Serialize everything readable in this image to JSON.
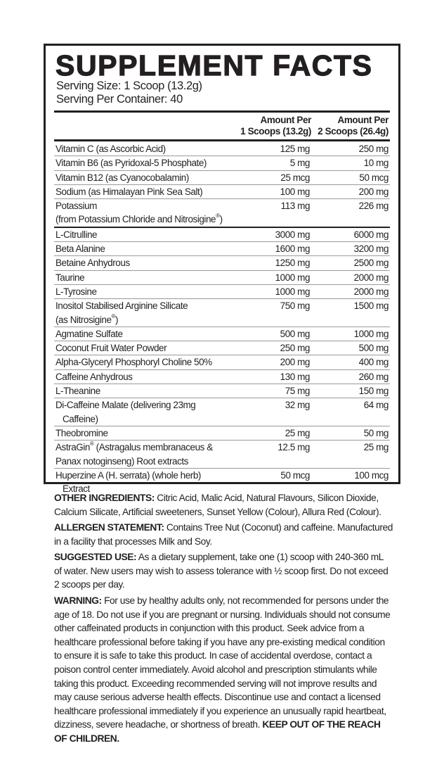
{
  "title": "SUPPLEMENT FACTS",
  "serving_size": "Serving Size: 1 Scoop (13.2g)",
  "servings_per_container": "Serving Per Container: 40",
  "columns": {
    "col1_line1": "Amount Per",
    "col1_line2": "1 Scoops (13.2g)",
    "col2_line1": "Amount Per",
    "col2_line2": "2 Scoops (26.4g)"
  },
  "rows": [
    {
      "name": "Vitamin C (as Ascorbic Acid)",
      "v1": "125 mg",
      "v2": "250 mg"
    },
    {
      "name": "Vitamin B6 (as Pyridoxal-5 Phosphate)",
      "v1": "5 mg",
      "v2": "10 mg"
    },
    {
      "name": "Vitamin B12 (as Cyanocobalamin)",
      "v1": "25 mcg",
      "v2": "50 mcg"
    },
    {
      "name": "Sodium (as Himalayan Pink Sea Salt)",
      "v1": "100 mg",
      "v2": "200 mg"
    },
    {
      "name": "Potassium",
      "name2": "(from Potassium Chloride and Nitrosigine®)",
      "v1": "113 mg",
      "v2": "226 mg",
      "section_end": true
    },
    {
      "name": "L-Citrulline",
      "v1": "3000 mg",
      "v2": "6000 mg"
    },
    {
      "name": "Beta Alanine",
      "v1": "1600 mg",
      "v2": "3200 mg"
    },
    {
      "name": "Betaine Anhydrous",
      "v1": "1250 mg",
      "v2": "2500 mg"
    },
    {
      "name": "Taurine",
      "v1": "1000 mg",
      "v2": "2000 mg"
    },
    {
      "name": "L-Tyrosine",
      "v1": "1000 mg",
      "v2": "2000 mg"
    },
    {
      "name": "Inositol Stabilised Arginine Silicate",
      "name2": "(as Nitrosigine®)",
      "v1": "750 mg",
      "v2": "1500 mg"
    },
    {
      "name": "Agmatine Sulfate",
      "v1": "500 mg",
      "v2": "1000 mg"
    },
    {
      "name": "Coconut Fruit Water Powder",
      "v1": "250 mg",
      "v2": "500 mg"
    },
    {
      "name": "Alpha-Glyceryl Phosphoryl Choline 50%",
      "v1": "200 mg",
      "v2": "400 mg"
    },
    {
      "name": "Caffeine Anhydrous",
      "v1": "130 mg",
      "v2": "260 mg"
    },
    {
      "name": "L-Theanine",
      "v1": "75 mg",
      "v2": "150 mg"
    },
    {
      "name": "Di-Caffeine Malate (delivering 23mg",
      "name2": "Caffeine)",
      "indent": true,
      "v1": "32 mg",
      "v2": "64 mg"
    },
    {
      "name": "Theobromine",
      "v1": "25 mg",
      "v2": "50 mg"
    },
    {
      "name": "AstraGin® (Astragalus membranaceus &",
      "name2": "Panax notoginseng) Root extracts",
      "v1": "12.5 mg",
      "v2": "25 mg"
    },
    {
      "name": "Huperzine A (H. serrata) (whole herb)",
      "name2": "Extract",
      "indent": true,
      "v1": "50 mcg",
      "v2": "100 mcg"
    }
  ],
  "other_ingredients": {
    "label": "OTHER INGREDIENTS:",
    "text": " Citric Acid, Malic Acid, Natural Flavours, Silicon Dioxide, Calcium Silicate, Artificial sweeteners, Sunset Yellow (Colour), Allura Red (Colour)."
  },
  "allergen": {
    "label": "ALLERGEN STATEMENT:",
    "text": " Contains Tree Nut (Coconut) and caffeine. Manufactured in a facility that processes Milk and Soy."
  },
  "suggested_use": {
    "label": "SUGGESTED USE:",
    "text": " As a dietary supplement, take one (1) scoop with 240-360 mL of water. New users may wish to assess tolerance with ½ scoop first. Do not exceed 2 scoops per day."
  },
  "warning": {
    "label": "WARNING:",
    "text": " For use by healthy adults only, not recommended for persons under the age of 18. Do not use if you are pregnant or nursing. Individuals should not consume other caffeinated products in conjunction with this product. Seek advice from a healthcare professional before taking if you have any pre-existing medical condition to ensure it is safe to take this product. In case of accidental overdose, contact a poison control center immediately. Avoid alcohol and prescription stimulants while taking this product. Exceeding recommended serving will not improve results and may cause serious adverse health effects. Discontinue use and contact a licensed healthcare professional immediately if you experience an unusually rapid heartbeat, dizziness, severe headache, or shortness of breath. ",
    "closing": "KEEP OUT OF THE REACH OF CHILDREN."
  }
}
